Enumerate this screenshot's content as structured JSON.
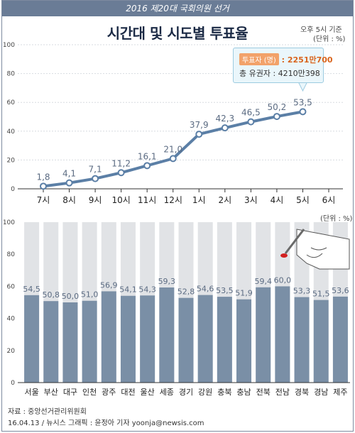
{
  "header": {
    "banner": "2016 제20대 국회의원 선거",
    "title": "시간대 및 시도별 투표율",
    "basis_note": "오후 5시 기준",
    "unit_note_top": "(단위 : %)",
    "unit_note_bottom": "(단위 : %)"
  },
  "callout": {
    "voters_label": "투표자 (명)",
    "voters_sep": " : ",
    "voters_value": "2251만700",
    "electorate_label": "총 유권자 : 4210만398"
  },
  "footer": {
    "source": "자료 : 중앙선거관리위원회",
    "credit": "16.04.13 / 뉴시스 그래픽 : 윤정아 기자 yoonja@newsis.com"
  },
  "colors": {
    "line": "#5b7fa6",
    "bar": "#7a8fa6",
    "bar_bg": "#e1e3e6",
    "label": "#5b6b82"
  },
  "chart_data": [
    {
      "type": "line",
      "title": "시간대 및 시도별 투표율",
      "ylabel": "(단위 : %)",
      "ylim": [
        0,
        100
      ],
      "yticks": [
        "0",
        "20",
        "40",
        "60",
        "80",
        "100"
      ],
      "categories": [
        "7시",
        "8시",
        "9시",
        "10시",
        "11시",
        "12시",
        "1시",
        "2시",
        "3시",
        "4시",
        "5시",
        "6시"
      ],
      "values": [
        1.8,
        4.1,
        7.1,
        11.2,
        16.1,
        21.0,
        37.9,
        42.3,
        46.5,
        50.2,
        53.5,
        null
      ],
      "labels": [
        "1,8",
        "4,1",
        "7,1",
        "11,2",
        "16,1",
        "21,0",
        "37,9",
        "42,3",
        "46,5",
        "50,2",
        "53,5",
        ""
      ]
    },
    {
      "type": "bar",
      "ylabel": "(단위 : %)",
      "ylim": [
        0,
        100
      ],
      "yticks": [
        "0",
        "20",
        "40",
        "60",
        "80",
        "100"
      ],
      "categories": [
        "서울",
        "부산",
        "대구",
        "인천",
        "광주",
        "대전",
        "울산",
        "세종",
        "경기",
        "강원",
        "충북",
        "충남",
        "전북",
        "전남",
        "경북",
        "경남",
        "제주"
      ],
      "values": [
        54.5,
        50.8,
        50.0,
        51.0,
        56.9,
        54.1,
        54.3,
        59.3,
        52.8,
        54.6,
        53.5,
        51.9,
        59.4,
        60.0,
        53.3,
        51.5,
        53.6
      ],
      "labels": [
        "54,5",
        "50,8",
        "50,0",
        "51,0",
        "56,9",
        "54,1",
        "54,3",
        "59,3",
        "52,8",
        "54,6",
        "53,5",
        "51,9",
        "59,4",
        "60,0",
        "53,3",
        "51,5",
        "53,6"
      ],
      "highlight": "전남"
    }
  ]
}
